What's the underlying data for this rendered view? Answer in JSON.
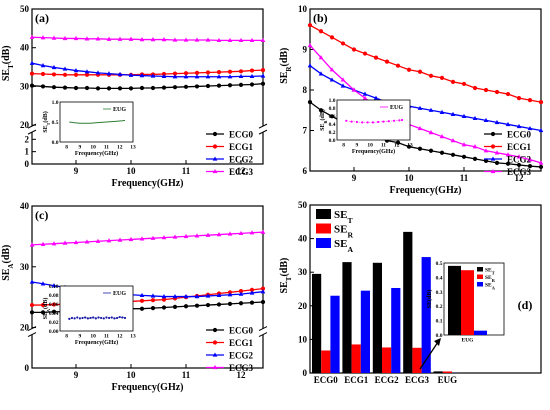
{
  "chart_data": [
    {
      "id": "a",
      "type": "line",
      "panel_label": "(a)",
      "xlabel": "Frequency(GHz)",
      "ylabel": "SE_T(dB)",
      "xlim": [
        8.2,
        12.4
      ],
      "xticks": [
        9,
        10,
        11,
        12
      ],
      "ybreak": true,
      "ylim_lower": [
        0,
        2.5
      ],
      "yticks_lower": [
        0,
        1,
        2
      ],
      "ylim_upper": [
        20,
        50
      ],
      "yticks_upper": [
        20,
        30,
        40,
        50
      ],
      "x": [
        8.2,
        8.4,
        8.6,
        8.8,
        9.0,
        9.2,
        9.4,
        9.6,
        9.8,
        10.0,
        10.2,
        10.4,
        10.6,
        10.8,
        11.0,
        11.2,
        11.4,
        11.6,
        11.8,
        12.0,
        12.2,
        12.4
      ],
      "series": [
        {
          "name": "ECG0",
          "color": "#000000",
          "marker": "circle",
          "values": [
            30.2,
            30.0,
            29.8,
            29.7,
            29.6,
            29.6,
            29.5,
            29.5,
            29.5,
            29.5,
            29.6,
            29.6,
            29.7,
            29.8,
            29.9,
            30.0,
            30.1,
            30.2,
            30.3,
            30.4,
            30.5,
            30.7
          ]
        },
        {
          "name": "ECG1",
          "color": "#ff0000",
          "marker": "circle",
          "values": [
            33.3,
            33.2,
            33.1,
            33.0,
            33.0,
            33.0,
            33.0,
            33.0,
            33.0,
            33.0,
            33.1,
            33.1,
            33.2,
            33.3,
            33.4,
            33.5,
            33.6,
            33.7,
            33.8,
            33.9,
            34.1,
            34.2
          ]
        },
        {
          "name": "ECG2",
          "color": "#0000ff",
          "marker": "triangle",
          "values": [
            36.0,
            35.4,
            34.9,
            34.5,
            34.1,
            33.8,
            33.5,
            33.3,
            33.1,
            32.9,
            32.8,
            32.7,
            32.6,
            32.5,
            32.5,
            32.5,
            32.5,
            32.5,
            32.5,
            32.6,
            32.6,
            32.7
          ]
        },
        {
          "name": "ECG3",
          "color": "#ff00ff",
          "marker": "triangle",
          "values": [
            42.7,
            42.6,
            42.5,
            42.4,
            42.4,
            42.3,
            42.3,
            42.2,
            42.2,
            42.2,
            42.1,
            42.1,
            42.1,
            42.0,
            42.0,
            42.0,
            42.0,
            41.9,
            41.9,
            41.9,
            41.9,
            41.9
          ]
        }
      ],
      "inset": {
        "xlabel": "Frequency(GHz)",
        "ylabel": "SE_T(dB)",
        "legend": "EUG",
        "color": "#2e7d32",
        "xlim": [
          7.5,
          13
        ],
        "xticks": [
          8,
          9,
          10,
          11,
          12,
          13
        ],
        "ylim": [
          0,
          1.0
        ],
        "yticks": [
          0.0,
          0.5,
          1.0
        ],
        "x": [
          8.2,
          8.6,
          9.0,
          9.4,
          9.8,
          10.2,
          10.6,
          11.0,
          11.4,
          11.8,
          12.2,
          12.4
        ],
        "values": [
          0.5,
          0.48,
          0.47,
          0.47,
          0.47,
          0.48,
          0.49,
          0.5,
          0.51,
          0.52,
          0.53,
          0.54
        ],
        "marker": "none"
      }
    },
    {
      "id": "b",
      "type": "line",
      "panel_label": "(b)",
      "xlabel": "Frequency(GHz)",
      "ylabel": "SE_R(dB)",
      "xlim": [
        8.2,
        12.4
      ],
      "xticks": [
        9,
        10,
        11,
        12
      ],
      "ylim": [
        6,
        10
      ],
      "yticks": [
        6,
        7,
        8,
        9,
        10
      ],
      "x": [
        8.2,
        8.4,
        8.6,
        8.8,
        9.0,
        9.2,
        9.4,
        9.6,
        9.8,
        10.0,
        10.2,
        10.4,
        10.6,
        10.8,
        11.0,
        11.2,
        11.4,
        11.6,
        11.8,
        12.0,
        12.2,
        12.4
      ],
      "series": [
        {
          "name": "ECG0",
          "color": "#000000",
          "marker": "circle",
          "values": [
            7.7,
            7.5,
            7.35,
            7.2,
            7.05,
            6.95,
            6.85,
            6.75,
            6.7,
            6.6,
            6.55,
            6.5,
            6.45,
            6.4,
            6.35,
            6.3,
            6.25,
            6.2,
            6.18,
            6.15,
            6.12,
            6.1
          ]
        },
        {
          "name": "ECG1",
          "color": "#ff0000",
          "marker": "circle",
          "values": [
            9.6,
            9.45,
            9.3,
            9.15,
            9.0,
            8.9,
            8.8,
            8.7,
            8.6,
            8.5,
            8.45,
            8.35,
            8.3,
            8.2,
            8.15,
            8.05,
            8.0,
            7.95,
            7.9,
            7.8,
            7.75,
            7.7
          ]
        },
        {
          "name": "ECG2",
          "color": "#0000ff",
          "marker": "triangle",
          "values": [
            8.6,
            8.4,
            8.25,
            8.1,
            8.0,
            7.9,
            7.8,
            7.7,
            7.65,
            7.6,
            7.55,
            7.5,
            7.45,
            7.4,
            7.35,
            7.3,
            7.25,
            7.2,
            7.15,
            7.1,
            7.05,
            7.0
          ]
        },
        {
          "name": "ECG3",
          "color": "#ff00ff",
          "marker": "triangle",
          "values": [
            9.1,
            8.8,
            8.5,
            8.25,
            8.0,
            7.8,
            7.6,
            7.45,
            7.3,
            7.15,
            7.05,
            6.95,
            6.85,
            6.75,
            6.65,
            6.6,
            6.5,
            6.45,
            6.4,
            6.35,
            6.28,
            6.2
          ]
        }
      ],
      "inset": {
        "xlabel": "Frequency(GHz)",
        "ylabel": "SE_R(dB)",
        "legend": "EUG",
        "color": "#ff00ff",
        "xlim": [
          7.5,
          13
        ],
        "xticks": [
          8,
          9,
          10,
          11,
          12,
          13
        ],
        "ylim": [
          0,
          1.0
        ],
        "yticks": [
          0.0,
          0.2,
          0.4,
          0.6,
          0.8,
          1.0
        ],
        "x": [
          8.2,
          8.6,
          9.0,
          9.4,
          9.8,
          10.2,
          10.6,
          11.0,
          11.4,
          11.8,
          12.2,
          12.4
        ],
        "values": [
          0.48,
          0.46,
          0.45,
          0.44,
          0.44,
          0.44,
          0.45,
          0.46,
          0.47,
          0.48,
          0.49,
          0.5
        ],
        "marker": "dot"
      }
    },
    {
      "id": "c",
      "type": "line",
      "panel_label": "(c)",
      "xlabel": "Frequency(GHz)",
      "ylabel": "SE_A(dB)",
      "xlim": [
        8.2,
        12.4
      ],
      "xticks": [
        9,
        10,
        11,
        12
      ],
      "ybreak": true,
      "ylim_lower": [
        0,
        1.0
      ],
      "yticks_lower": [
        0
      ],
      "ylim_upper": [
        20,
        40
      ],
      "yticks_upper": [
        20,
        30,
        40
      ],
      "x": [
        8.2,
        8.4,
        8.6,
        8.8,
        9.0,
        9.2,
        9.4,
        9.6,
        9.8,
        10.0,
        10.2,
        10.4,
        10.6,
        10.8,
        11.0,
        11.2,
        11.4,
        11.6,
        11.8,
        12.0,
        12.2,
        12.4
      ],
      "series": [
        {
          "name": "ECG0",
          "color": "#000000",
          "marker": "circle",
          "values": [
            22.5,
            22.5,
            22.6,
            22.6,
            22.7,
            22.8,
            22.8,
            22.9,
            23.0,
            23.1,
            23.1,
            23.2,
            23.3,
            23.4,
            23.5,
            23.6,
            23.7,
            23.8,
            23.9,
            24.0,
            24.1,
            24.2
          ]
        },
        {
          "name": "ECG1",
          "color": "#ff0000",
          "marker": "circle",
          "values": [
            23.7,
            23.7,
            23.8,
            23.8,
            23.9,
            23.9,
            24.0,
            24.1,
            24.2,
            24.3,
            24.4,
            24.5,
            24.6,
            24.8,
            25.0,
            25.2,
            25.4,
            25.6,
            25.8,
            26.0,
            26.2,
            26.4
          ]
        },
        {
          "name": "ECG2",
          "color": "#0000ff",
          "marker": "triangle",
          "values": [
            27.5,
            27.2,
            26.9,
            26.6,
            26.3,
            26.1,
            25.9,
            25.7,
            25.5,
            25.4,
            25.3,
            25.2,
            25.1,
            25.1,
            25.1,
            25.1,
            25.2,
            25.3,
            25.4,
            25.5,
            25.7,
            25.9
          ]
        },
        {
          "name": "ECG3",
          "color": "#ff00ff",
          "marker": "triangle",
          "values": [
            33.6,
            33.7,
            33.8,
            33.9,
            34.0,
            34.1,
            34.2,
            34.3,
            34.4,
            34.5,
            34.6,
            34.7,
            34.8,
            34.9,
            35.0,
            35.1,
            35.2,
            35.3,
            35.4,
            35.5,
            35.6,
            35.7
          ]
        }
      ],
      "inset": {
        "xlabel": "Frequency(GHz)",
        "ylabel": "SE_A(dB)",
        "legend": "EUG",
        "color": "#1a1aa6",
        "xlim": [
          7.5,
          13
        ],
        "xticks": [
          8,
          9,
          10,
          11,
          12,
          13
        ],
        "ylim": [
          0,
          0.1
        ],
        "yticks": [
          0.0,
          0.02,
          0.04,
          0.06,
          0.08,
          0.1
        ],
        "x": [
          8.2,
          8.4,
          8.6,
          8.8,
          9.0,
          9.2,
          9.4,
          9.6,
          9.8,
          10.0,
          10.2,
          10.4,
          10.6,
          10.8,
          11.0,
          11.2,
          11.4,
          11.6,
          11.8,
          12.0,
          12.2,
          12.4
        ],
        "values": [
          0.027,
          0.029,
          0.028,
          0.03,
          0.028,
          0.029,
          0.03,
          0.028,
          0.029,
          0.03,
          0.028,
          0.03,
          0.029,
          0.028,
          0.03,
          0.029,
          0.03,
          0.028,
          0.029,
          0.031,
          0.03,
          0.029
        ],
        "marker": "dot"
      }
    },
    {
      "id": "d",
      "type": "bar",
      "panel_label": "(d)",
      "ylabel": "SE_T(dB)",
      "categories": [
        "ECG0",
        "ECG1",
        "ECG2",
        "ECG3",
        "EUG"
      ],
      "ylim": [
        0,
        50
      ],
      "yticks": [
        0,
        10,
        20,
        30,
        40,
        50
      ],
      "series": [
        {
          "name": "SE_T",
          "color": "#000000",
          "values": [
            29.5,
            33.0,
            32.8,
            42.0,
            0.48
          ]
        },
        {
          "name": "SE_R",
          "color": "#ff0000",
          "values": [
            6.7,
            8.5,
            7.6,
            7.5,
            0.45
          ]
        },
        {
          "name": "SE_A",
          "color": "#0000ff",
          "values": [
            23.0,
            24.5,
            25.3,
            34.5,
            0.03
          ]
        }
      ],
      "inset": {
        "category": "EUG",
        "ylabel": "SE(dB)",
        "ylim": [
          0,
          0.5
        ],
        "yticks": [
          0.0,
          0.1,
          0.2,
          0.3,
          0.4,
          0.5
        ],
        "series": [
          {
            "name": "SE_T",
            "color": "#000000",
            "value": 0.48
          },
          {
            "name": "SE_R",
            "color": "#ff0000",
            "value": 0.45
          },
          {
            "name": "SE_A",
            "color": "#0000ff",
            "value": 0.03
          }
        ]
      }
    }
  ]
}
